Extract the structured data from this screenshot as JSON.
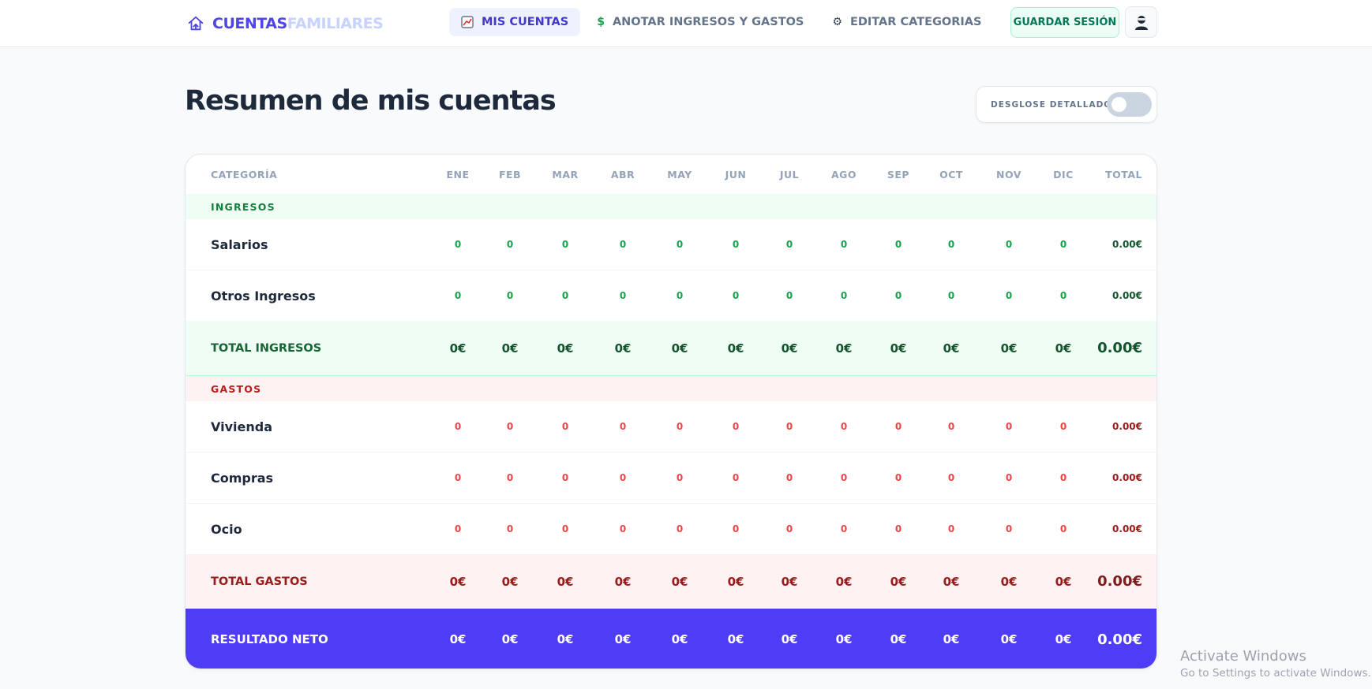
{
  "app": {
    "brand_part1": "CUENTAS",
    "brand_part2": "FAMILIARES"
  },
  "nav": {
    "items": [
      {
        "label": "MIS CUENTAS",
        "icon": "chart-icon",
        "active": true
      },
      {
        "label": "ANOTAR INGRESOS Y GASTOS",
        "icon": "dollar-icon",
        "active": false
      },
      {
        "label": "EDITAR CATEGORIAS",
        "icon": "gear-icon",
        "active": false
      }
    ],
    "save_label": "GUARDAR SESIÓN"
  },
  "page": {
    "title": "Resumen de mis cuentas",
    "toggle_label": "DESGLOSE DETALLADO",
    "toggle_on": false
  },
  "table": {
    "headers": {
      "category": "CATEGORÍA",
      "months": [
        "ENE",
        "FEB",
        "MAR",
        "ABR",
        "MAY",
        "JUN",
        "JUL",
        "AGO",
        "SEP",
        "OCT",
        "NOV",
        "DIC"
      ],
      "total": "TOTAL"
    },
    "income": {
      "section_label": "INGRESOS",
      "rows": [
        {
          "name": "Salarios",
          "values": [
            "0",
            "0",
            "0",
            "0",
            "0",
            "0",
            "0",
            "0",
            "0",
            "0",
            "0",
            "0"
          ],
          "total": "0.00€"
        },
        {
          "name": "Otros Ingresos",
          "values": [
            "0",
            "0",
            "0",
            "0",
            "0",
            "0",
            "0",
            "0",
            "0",
            "0",
            "0",
            "0"
          ],
          "total": "0.00€"
        }
      ],
      "total_label": "TOTAL INGRESOS",
      "total_values": [
        "0€",
        "0€",
        "0€",
        "0€",
        "0€",
        "0€",
        "0€",
        "0€",
        "0€",
        "0€",
        "0€",
        "0€"
      ],
      "total_sum": "0.00€"
    },
    "expenses": {
      "section_label": "GASTOS",
      "rows": [
        {
          "name": "Vivienda",
          "values": [
            "0",
            "0",
            "0",
            "0",
            "0",
            "0",
            "0",
            "0",
            "0",
            "0",
            "0",
            "0"
          ],
          "total": "0.00€"
        },
        {
          "name": "Compras",
          "values": [
            "0",
            "0",
            "0",
            "0",
            "0",
            "0",
            "0",
            "0",
            "0",
            "0",
            "0",
            "0"
          ],
          "total": "0.00€"
        },
        {
          "name": "Ocio",
          "values": [
            "0",
            "0",
            "0",
            "0",
            "0",
            "0",
            "0",
            "0",
            "0",
            "0",
            "0",
            "0"
          ],
          "total": "0.00€"
        }
      ],
      "total_label": "TOTAL GASTOS",
      "total_values": [
        "0€",
        "0€",
        "0€",
        "0€",
        "0€",
        "0€",
        "0€",
        "0€",
        "0€",
        "0€",
        "0€",
        "0€"
      ],
      "total_sum": "0.00€"
    },
    "net": {
      "label": "RESULTADO NETO",
      "values": [
        "0€",
        "0€",
        "0€",
        "0€",
        "0€",
        "0€",
        "0€",
        "0€",
        "0€",
        "0€",
        "0€",
        "0€"
      ],
      "total": "0.00€"
    }
  },
  "watermark": {
    "title": "Activate Windows",
    "subtitle": "Go to Settings to activate Windows."
  },
  "colors": {
    "accent": "#4f46e5",
    "net_row": "#4f3cf7",
    "income": "#16a34a",
    "expense": "#ef4444"
  }
}
